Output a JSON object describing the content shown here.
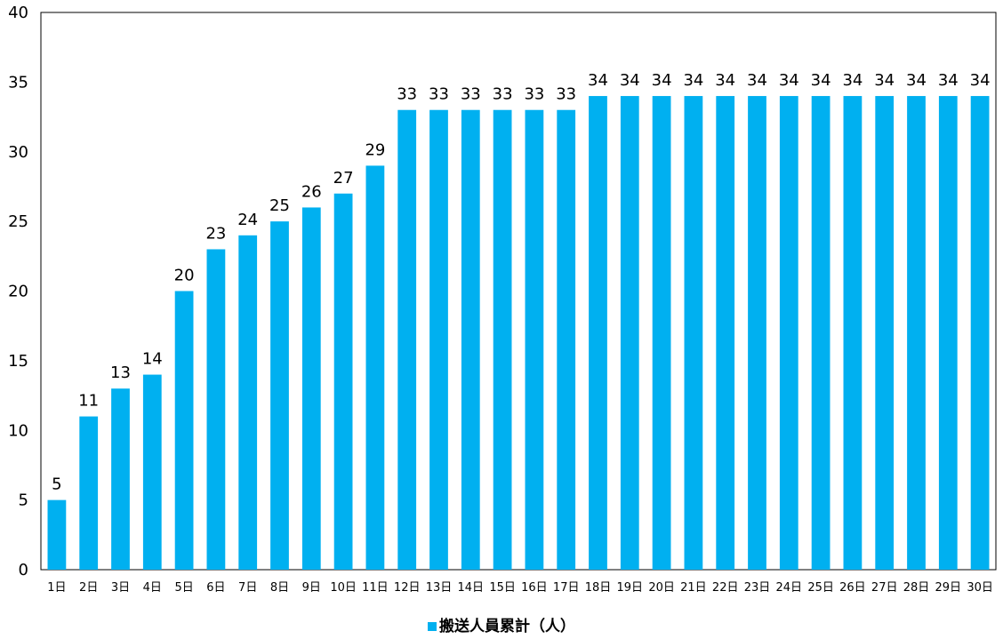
{
  "chart_data": {
    "type": "bar",
    "categories": [
      "1日",
      "2日",
      "3日",
      "4日",
      "5日",
      "6日",
      "7日",
      "8日",
      "9日",
      "10日",
      "11日",
      "12日",
      "13日",
      "14日",
      "15日",
      "16日",
      "17日",
      "18日",
      "19日",
      "20日",
      "21日",
      "22日",
      "23日",
      "24日",
      "25日",
      "26日",
      "27日",
      "28日",
      "29日",
      "30日"
    ],
    "series": [
      {
        "name": "搬送人員累計（人）",
        "values": [
          5,
          11,
          13,
          14,
          20,
          23,
          24,
          25,
          26,
          27,
          29,
          33,
          33,
          33,
          33,
          33,
          33,
          34,
          34,
          34,
          34,
          34,
          34,
          34,
          34,
          34,
          34,
          34,
          34,
          34
        ]
      }
    ],
    "y_ticks": [
      "0",
      "5",
      "10",
      "15",
      "20",
      "25",
      "30",
      "35",
      "40"
    ],
    "ylim": [
      0,
      40
    ],
    "title": "",
    "xlabel": "",
    "ylabel": "",
    "grid": false,
    "legend_position": "bottom",
    "bar_color": "#00B0F0"
  }
}
